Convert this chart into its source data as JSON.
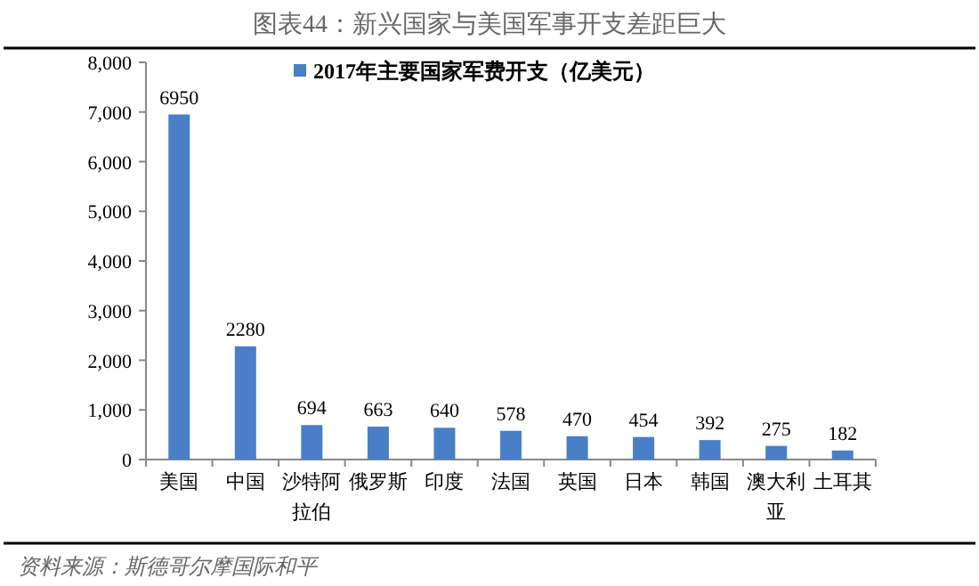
{
  "chart_data": {
    "type": "bar",
    "title": "图表44：新兴国家与美国军事开支差距巨大",
    "categories": [
      "美国",
      "中国",
      "沙特阿拉伯",
      "俄罗斯",
      "印度",
      "法国",
      "英国",
      "日本",
      "韩国",
      "澳大利亚",
      "土耳其"
    ],
    "series": [
      {
        "name": "2017年主要国家军费开支（亿美元）",
        "color": "#4a7fc8",
        "values": [
          6950,
          2280,
          694,
          663,
          640,
          578,
          470,
          454,
          392,
          275,
          182
        ]
      }
    ],
    "ylim": [
      0,
      8000
    ],
    "yticks": [
      0,
      {
        "value": 1000,
        "label": "1,000"
      },
      {
        "value": 2000,
        "label": "2,000"
      },
      {
        "value": 3000,
        "label": "3,000"
      },
      {
        "value": 4000,
        "label": "4,000"
      },
      {
        "value": 5000,
        "label": "5,000"
      },
      {
        "value": 6000,
        "label": "6,000"
      },
      {
        "value": 7000,
        "label": "7,000"
      },
      {
        "value": 8000,
        "label": "8,000"
      }
    ],
    "data_labels": true,
    "legend": "top",
    "grid": false,
    "annotations": [
      "资料来源：斯德哥尔摩国际和平"
    ]
  }
}
